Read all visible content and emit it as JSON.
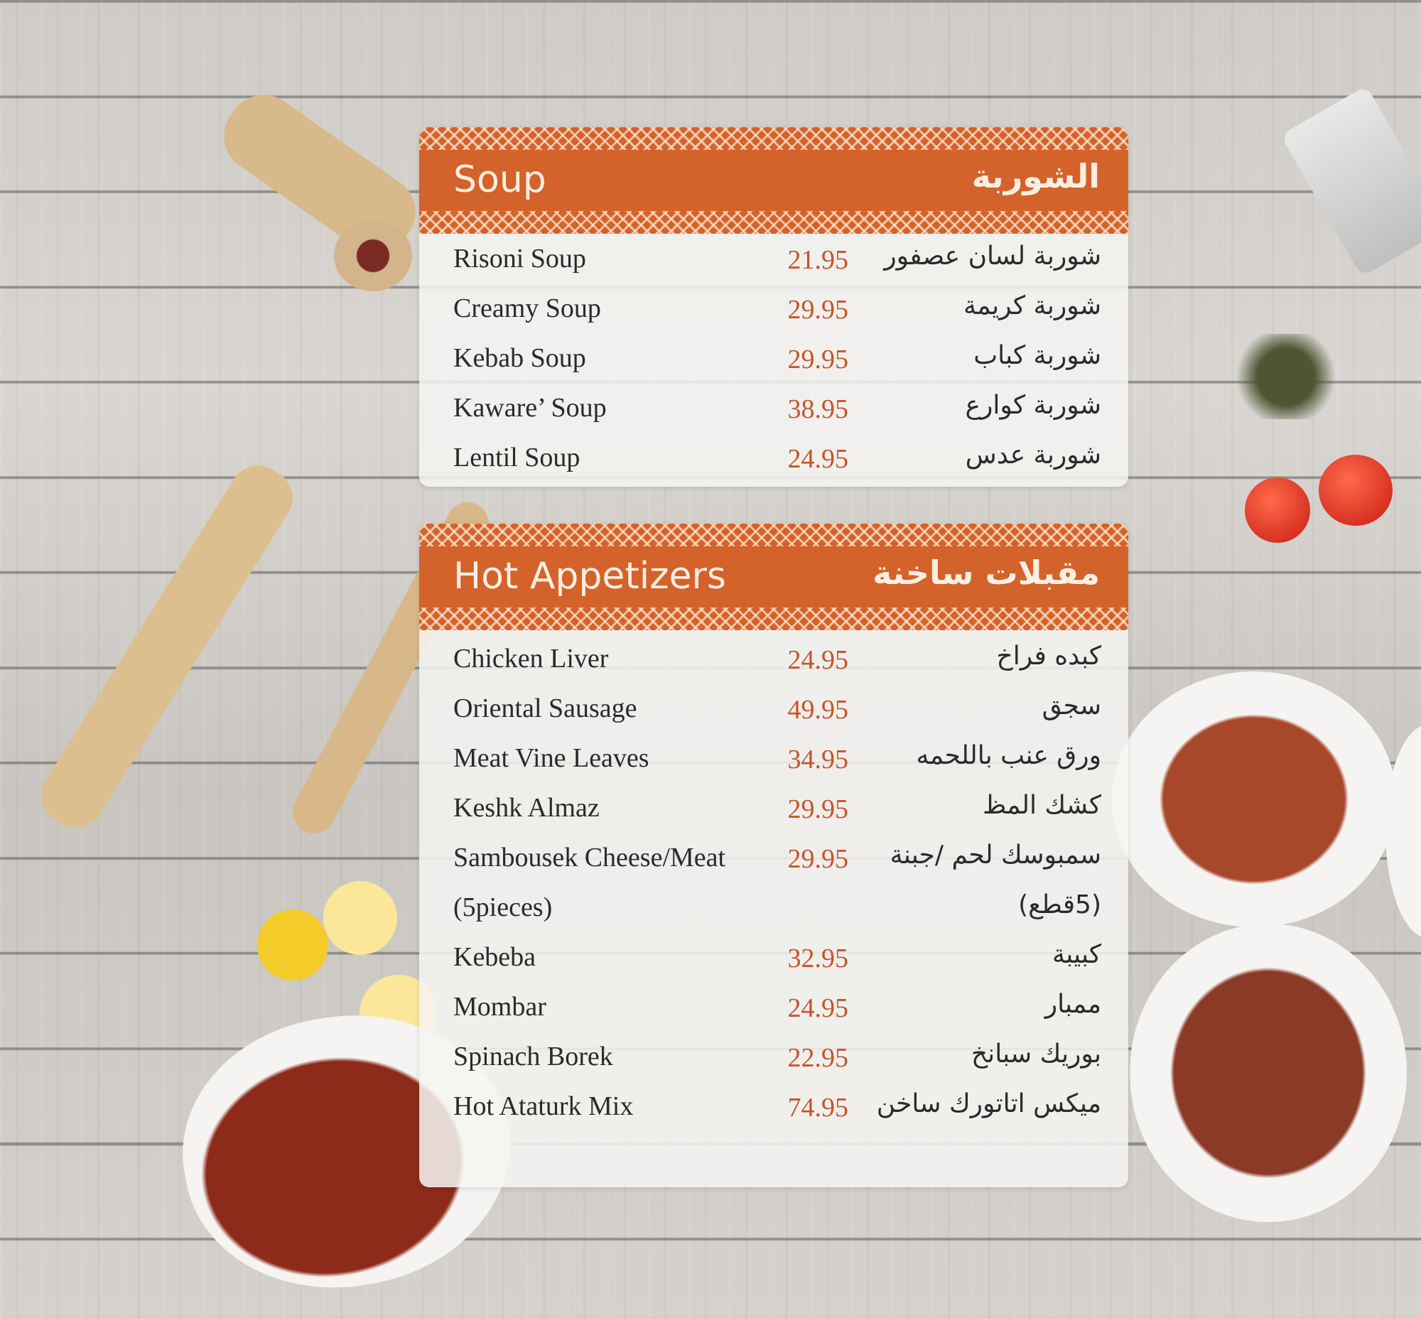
{
  "colors": {
    "accent": "#d4622b",
    "price": "#c6552a",
    "header_text": "#fbeee2"
  },
  "sections": [
    {
      "title_en": "Soup",
      "title_ar": "الشوربة",
      "items": [
        {
          "en": "Risoni Soup",
          "price": "21.95",
          "ar": "شوربة لسان عصفور"
        },
        {
          "en": "Creamy Soup",
          "price": "29.95",
          "ar": "شوربة كريمة"
        },
        {
          "en": "Kebab Soup",
          "price": "29.95",
          "ar": "شوربة كباب"
        },
        {
          "en": "Kaware’ Soup",
          "price": "38.95",
          "ar": "شوربة كوارع"
        },
        {
          "en": "Lentil Soup",
          "price": "24.95",
          "ar": "شوربة عدس"
        }
      ]
    },
    {
      "title_en": "Hot Appetizers",
      "title_ar": "مقبلات ساخنة",
      "items": [
        {
          "en": "Chicken Liver",
          "price": "24.95",
          "ar": "كبده فراخ"
        },
        {
          "en": "Oriental Sausage",
          "price": "49.95",
          "ar": "سجق"
        },
        {
          "en": "Meat Vine Leaves",
          "price": "34.95",
          "ar": "ورق عنب باللحمه"
        },
        {
          "en": "Keshk Almaz",
          "price": "29.95",
          "ar": "كشك المظ"
        },
        {
          "en": "Sambousek Cheese/Meat",
          "price": "29.95",
          "ar": "سمبوسك لحم /جبنة"
        },
        {
          "en": "(5pieces)",
          "price": "",
          "ar": "(5قطع)"
        },
        {
          "en": "Kebeba",
          "price": "32.95",
          "ar": "كبيبة"
        },
        {
          "en": "Mombar",
          "price": "24.95",
          "ar": "ممبار"
        },
        {
          "en": "Spinach Borek",
          "price": "22.95",
          "ar": "بوريك سبانخ"
        },
        {
          "en": "Hot Ataturk Mix",
          "price": "74.95",
          "ar": "ميكس اتاتورك ساخن"
        }
      ]
    }
  ]
}
